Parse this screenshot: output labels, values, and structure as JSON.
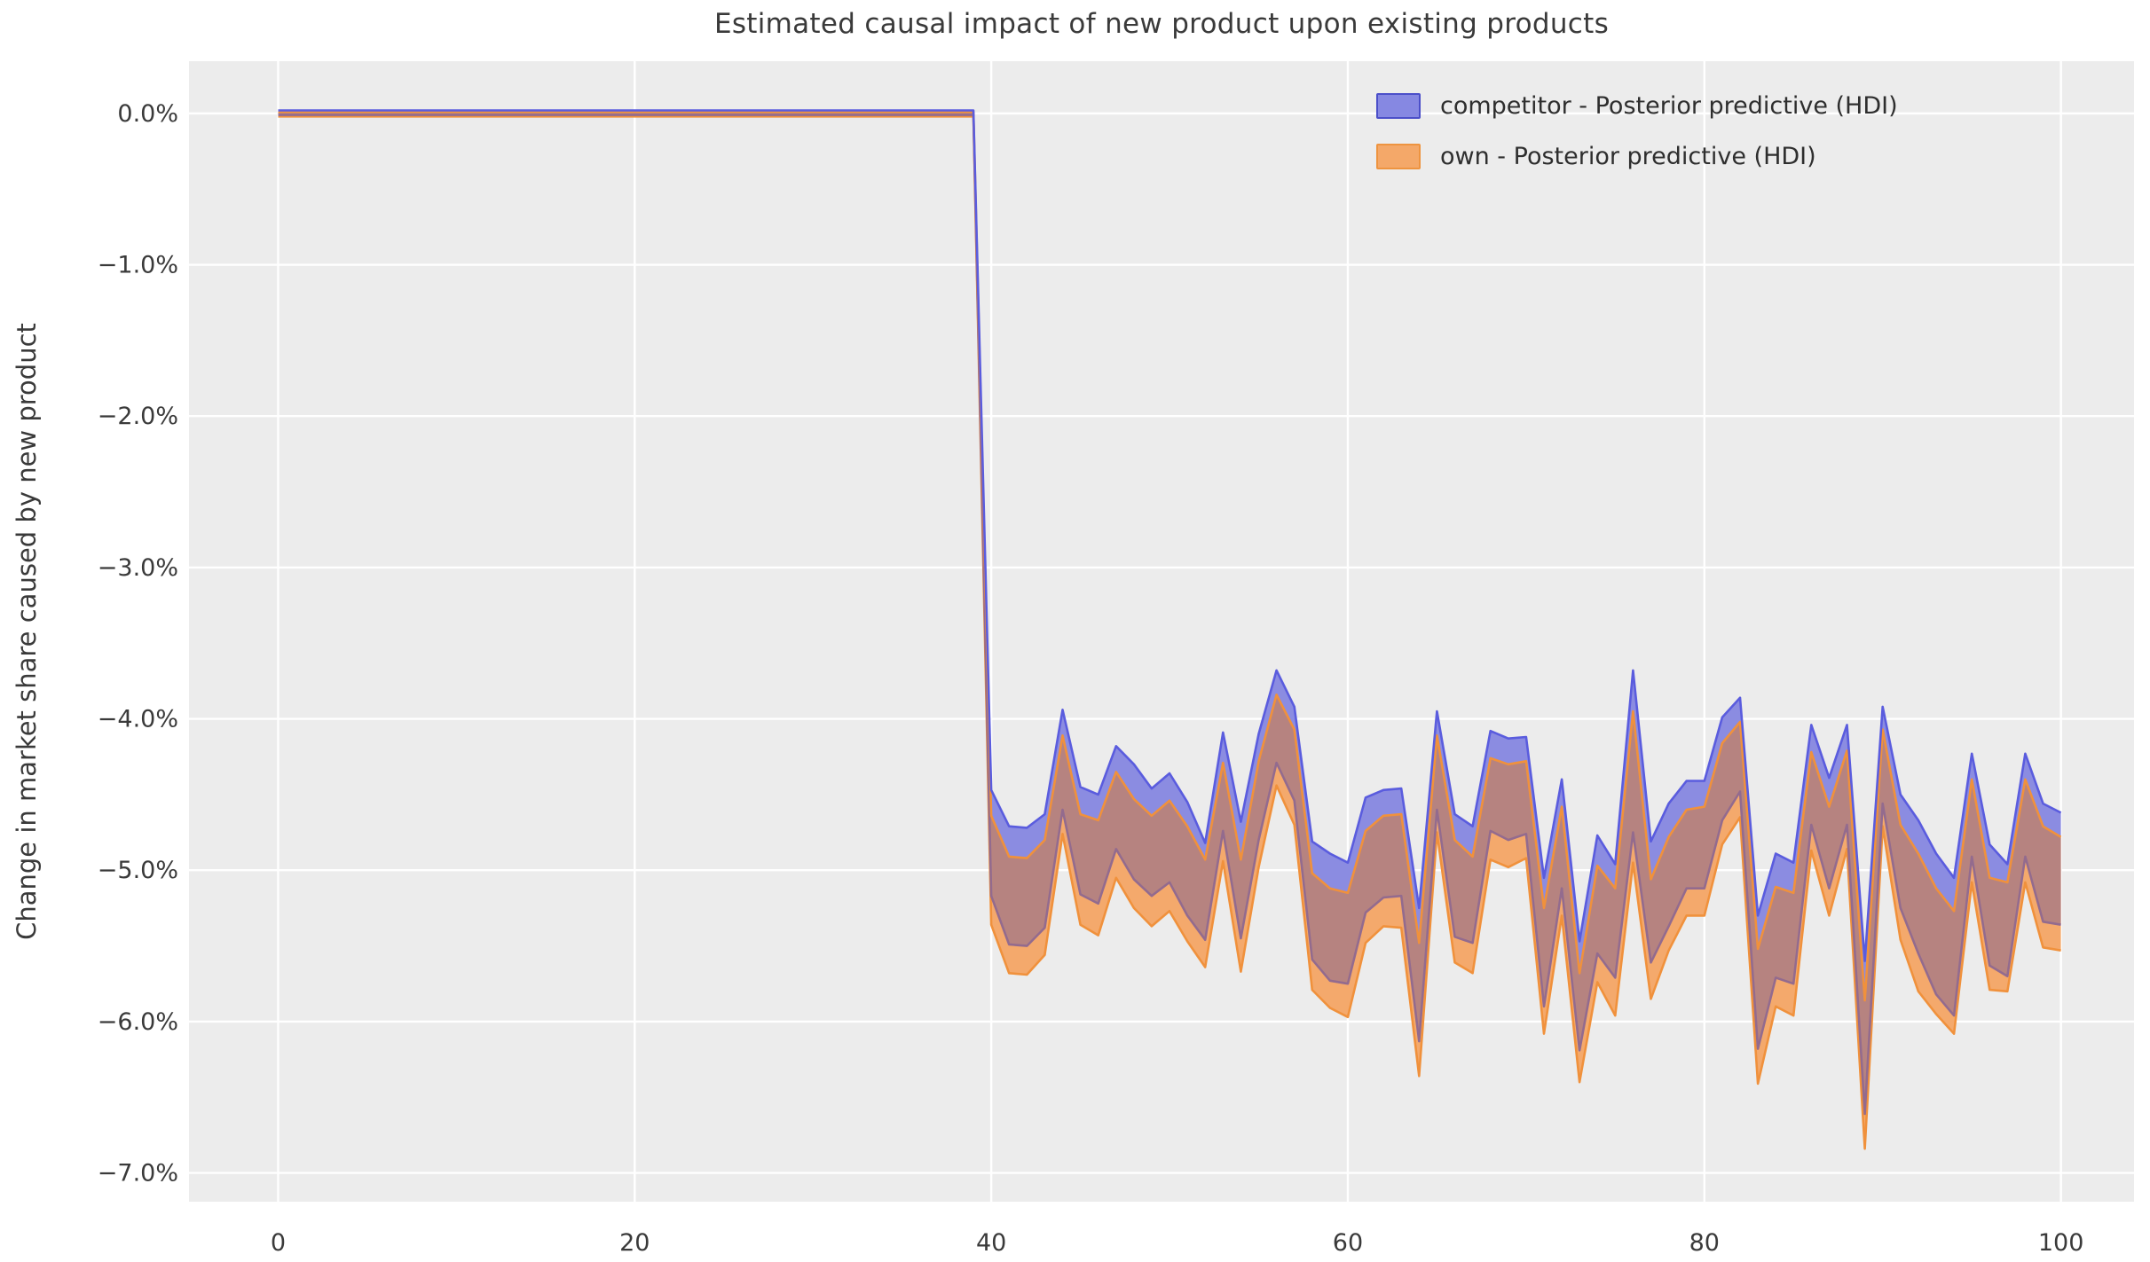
{
  "title": "Estimated causal impact of new product upon existing products",
  "ylabel": "Change in market share caused by new product",
  "legend": {
    "items": [
      {
        "label": "competitor - Posterior predictive (HDI)",
        "fill": "#8688E2",
        "edge": "#4B4FC9"
      },
      {
        "label": "own - Posterior predictive (HDI)",
        "fill": "#F4A869",
        "edge": "#EE9440"
      }
    ]
  },
  "axes": {
    "x_ticks": [
      0,
      20,
      40,
      60,
      80,
      100
    ],
    "y_ticks": [
      {
        "label": "0.0%",
        "value": 0
      },
      {
        "label": "−1.0%",
        "value": -1
      },
      {
        "label": "−2.0%",
        "value": -2
      },
      {
        "label": "−3.0%",
        "value": -3
      },
      {
        "label": "−4.0%",
        "value": -4
      },
      {
        "label": "−5.0%",
        "value": -5
      },
      {
        "label": "−6.0%",
        "value": -6
      },
      {
        "label": "−7.0%",
        "value": -7
      }
    ],
    "xlim": [
      -5.0,
      104.1
    ],
    "ylim": [
      -7.19,
      0.345
    ],
    "grid": true,
    "plot_bg": "#ECECEC",
    "grid_color": "#FFFFFF",
    "tick_color": "#3a3a3a"
  },
  "chart_data": {
    "type": "area",
    "title": "Estimated causal impact of new product upon existing products",
    "xlabel": "",
    "ylabel": "Change in market share caused by new product",
    "legend_position": "upper right",
    "units": "percent",
    "note": "Two overlapping posterior-predictive HDI bands; flat at 0% for x=0..39, intervention at x=40 causes a drop to roughly -4% to -6%.",
    "pre": {
      "x_start": 0,
      "x_end": 39,
      "competitor": {
        "upper": 0.02,
        "lower": -0.01
      },
      "own": {
        "upper": 0.01,
        "lower": -0.02
      }
    },
    "post": {
      "x_start": 40,
      "x_end": 100,
      "competitor": {
        "upper": [
          -4.47,
          -4.71,
          -4.72,
          -4.63,
          -3.94,
          -4.45,
          -4.5,
          -4.18,
          -4.3,
          -4.46,
          -4.36,
          -4.55,
          -4.82,
          -4.09,
          -4.68,
          -4.1,
          -3.68,
          -3.92,
          -4.81,
          -4.89,
          -4.95,
          -4.52,
          -4.47,
          -4.46,
          -5.25,
          -3.95,
          -4.63,
          -4.71,
          -4.08,
          -4.13,
          -4.12,
          -5.05,
          -4.4,
          -5.47,
          -4.77,
          -4.96,
          -3.68,
          -4.81,
          -4.56,
          -4.41,
          -4.41,
          -3.99,
          -3.86,
          -5.3,
          -4.89,
          -4.95,
          -4.04,
          -4.39,
          -4.04,
          -5.6,
          -3.92,
          -4.5,
          -4.67,
          -4.89,
          -5.05,
          -4.23,
          -4.83,
          -4.96,
          -4.23,
          -4.56,
          -4.62
        ],
        "lower": [
          -5.17,
          -5.49,
          -5.5,
          -5.38,
          -4.6,
          -5.16,
          -5.22,
          -4.86,
          -5.06,
          -5.17,
          -5.08,
          -5.3,
          -5.46,
          -4.74,
          -5.45,
          -4.8,
          -4.29,
          -4.54,
          -5.59,
          -5.73,
          -5.75,
          -5.28,
          -5.18,
          -5.17,
          -6.13,
          -4.6,
          -5.44,
          -5.48,
          -4.74,
          -4.8,
          -4.76,
          -5.9,
          -5.12,
          -6.19,
          -5.55,
          -5.71,
          -4.75,
          -5.61,
          -5.37,
          -5.12,
          -5.12,
          -4.67,
          -4.48,
          -6.18,
          -5.71,
          -5.75,
          -4.7,
          -5.12,
          -4.7,
          -6.61,
          -4.56,
          -5.25,
          -5.55,
          -5.82,
          -5.96,
          -4.91,
          -5.63,
          -5.7,
          -4.91,
          -5.34,
          -5.36
        ]
      },
      "own": {
        "upper": [
          -4.64,
          -4.91,
          -4.92,
          -4.8,
          -4.11,
          -4.63,
          -4.67,
          -4.35,
          -4.53,
          -4.64,
          -4.54,
          -4.71,
          -4.93,
          -4.29,
          -4.93,
          -4.28,
          -3.84,
          -4.07,
          -5.02,
          -5.12,
          -5.15,
          -4.74,
          -4.64,
          -4.63,
          -5.48,
          -4.11,
          -4.8,
          -4.91,
          -4.26,
          -4.3,
          -4.28,
          -5.25,
          -4.58,
          -5.68,
          -4.97,
          -5.12,
          -3.95,
          -5.06,
          -4.78,
          -4.6,
          -4.58,
          -4.16,
          -4.02,
          -5.52,
          -5.11,
          -5.15,
          -4.22,
          -4.58,
          -4.21,
          -5.86,
          -4.07,
          -4.7,
          -4.89,
          -5.12,
          -5.27,
          -4.4,
          -5.05,
          -5.08,
          -4.4,
          -4.71,
          -4.78
        ],
        "lower": [
          -5.36,
          -5.68,
          -5.69,
          -5.56,
          -4.76,
          -5.36,
          -5.43,
          -5.05,
          -5.25,
          -5.37,
          -5.27,
          -5.47,
          -5.64,
          -4.94,
          -5.67,
          -4.98,
          -4.44,
          -4.7,
          -5.79,
          -5.91,
          -5.97,
          -5.48,
          -5.37,
          -5.38,
          -6.36,
          -4.75,
          -5.61,
          -5.68,
          -4.93,
          -4.98,
          -4.92,
          -6.08,
          -5.3,
          -6.4,
          -5.74,
          -5.96,
          -4.95,
          -5.85,
          -5.53,
          -5.3,
          -5.3,
          -4.83,
          -4.65,
          -6.41,
          -5.9,
          -5.96,
          -4.87,
          -5.3,
          -4.86,
          -6.84,
          -4.71,
          -5.46,
          -5.8,
          -5.95,
          -6.08,
          -5.08,
          -5.79,
          -5.8,
          -5.08,
          -5.51,
          -5.53
        ]
      }
    },
    "colors": {
      "competitor_fill": "#8B8CE1",
      "competitor_edge": "#5A5CDE",
      "own_fill": "#F4A96C",
      "own_edge": "#F0913C",
      "overlap_fill": "#B68380",
      "competitor_lower_edge_over_orange": "#936B8E"
    }
  }
}
